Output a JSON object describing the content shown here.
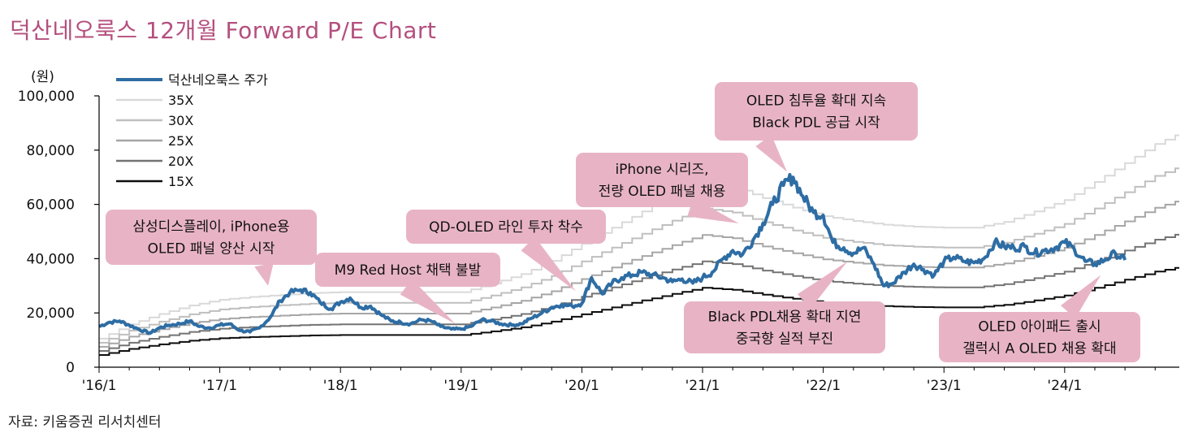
{
  "title": "덕산네오룩스 12개월 Forward P/E Chart",
  "source": "자료: 키움증권 리서치센터",
  "chart_data": {
    "type": "line",
    "title": "덕산네오룩스 12개월 Forward P/E Chart",
    "ylabel": "(원)",
    "xlabel": "",
    "ylim": [
      0,
      100000
    ],
    "yticks": [
      0,
      20000,
      40000,
      60000,
      80000,
      100000
    ],
    "ytick_labels": [
      "0",
      "20,000",
      "40,000",
      "60,000",
      "80,000",
      "100,000"
    ],
    "xlim": [
      2016.0,
      2024.95
    ],
    "xticks": [
      2016,
      2017,
      2018,
      2019,
      2020,
      2021,
      2022,
      2023,
      2024
    ],
    "xtick_labels": [
      "'16/1",
      "'17/1",
      "'18/1",
      "'19/1",
      "'20/1",
      "'21/1",
      "'22/1",
      "'23/1",
      "'24/1"
    ],
    "legend_position": "top-left",
    "band_eps": {
      "x": [
        2016.0,
        2016.25,
        2016.5,
        2016.75,
        2017.0,
        2017.25,
        2017.5,
        2017.75,
        2018.0,
        2018.5,
        2019.0,
        2019.25,
        2019.5,
        2019.75,
        2020.0,
        2020.25,
        2020.5,
        2020.75,
        2021.0,
        2021.25,
        2021.5,
        2021.75,
        2022.0,
        2022.25,
        2022.5,
        2022.75,
        2023.0,
        2023.25,
        2023.5,
        2023.75,
        2024.0,
        2024.25,
        2024.5,
        2024.75,
        2024.95
      ],
      "values": [
        300,
        450,
        560,
        650,
        710,
        740,
        760,
        780,
        790,
        790,
        790,
        880,
        980,
        1120,
        1300,
        1470,
        1640,
        1800,
        1950,
        1900,
        1780,
        1680,
        1590,
        1540,
        1500,
        1480,
        1470,
        1470,
        1530,
        1640,
        1760,
        1950,
        2150,
        2350,
        2460
      ]
    },
    "series": [
      {
        "name": "덕산네오룩스 주가",
        "color": "#2e6da4",
        "width": 4,
        "x": [
          2016.0,
          2016.08,
          2016.17,
          2016.25,
          2016.33,
          2016.42,
          2016.5,
          2016.58,
          2016.67,
          2016.75,
          2016.83,
          2016.92,
          2017.0,
          2017.08,
          2017.17,
          2017.25,
          2017.33,
          2017.42,
          2017.5,
          2017.58,
          2017.67,
          2017.75,
          2017.83,
          2017.92,
          2018.0,
          2018.08,
          2018.17,
          2018.25,
          2018.33,
          2018.42,
          2018.5,
          2018.58,
          2018.67,
          2018.75,
          2018.83,
          2018.92,
          2019.0,
          2019.08,
          2019.17,
          2019.25,
          2019.33,
          2019.42,
          2019.5,
          2019.58,
          2019.67,
          2019.75,
          2019.83,
          2019.92,
          2020.0,
          2020.08,
          2020.17,
          2020.25,
          2020.33,
          2020.42,
          2020.5,
          2020.58,
          2020.67,
          2020.75,
          2020.83,
          2020.92,
          2021.0,
          2021.08,
          2021.17,
          2021.25,
          2021.33,
          2021.42,
          2021.5,
          2021.58,
          2021.67,
          2021.75,
          2021.83,
          2021.92,
          2022.0,
          2022.08,
          2022.17,
          2022.25,
          2022.33,
          2022.42,
          2022.5,
          2022.58,
          2022.67,
          2022.75,
          2022.83,
          2022.92,
          2023.0,
          2023.08,
          2023.17,
          2023.25,
          2023.33,
          2023.42,
          2023.5,
          2023.58,
          2023.67,
          2023.75,
          2023.83,
          2023.92,
          2024.0,
          2024.08,
          2024.17,
          2024.25,
          2024.33,
          2024.42,
          2024.5
        ],
        "values": [
          15000,
          16500,
          17000,
          15500,
          14000,
          12500,
          14500,
          15500,
          16000,
          17000,
          15000,
          14500,
          15500,
          16000,
          13500,
          13000,
          14500,
          18500,
          24500,
          27500,
          28500,
          27500,
          24000,
          21500,
          24000,
          25500,
          22000,
          22500,
          19500,
          17000,
          16500,
          16000,
          17500,
          17000,
          15000,
          14000,
          14000,
          15000,
          17500,
          17000,
          16000,
          15500,
          16000,
          18000,
          20000,
          22000,
          23000,
          22500,
          23500,
          33000,
          27000,
          31000,
          33000,
          34000,
          35000,
          34000,
          33000,
          31500,
          32500,
          31000,
          33000,
          35000,
          40000,
          43000,
          41500,
          47000,
          53000,
          60000,
          67000,
          70000,
          63000,
          57000,
          56000,
          46000,
          44000,
          42000,
          44000,
          38000,
          30000,
          31000,
          35000,
          38000,
          36000,
          34000,
          39000,
          40500,
          39000,
          38500,
          40000,
          46000,
          44500,
          44000,
          44500,
          42000,
          43000,
          44000,
          46000,
          43500,
          39000,
          38000,
          39500,
          42000,
          39500
        ]
      },
      {
        "name": "35X",
        "multiple": 35,
        "color": "#d9d9d9",
        "width": 2
      },
      {
        "name": "30X",
        "multiple": 30,
        "color": "#bfbfbf",
        "width": 2
      },
      {
        "name": "25X",
        "multiple": 25,
        "color": "#a6a6a6",
        "width": 2
      },
      {
        "name": "20X",
        "multiple": 20,
        "color": "#737373",
        "width": 2
      },
      {
        "name": "15X",
        "multiple": 15,
        "color": "#0d0d0d",
        "width": 2
      }
    ],
    "annotations": [
      {
        "lines": [
          "삼성디스플레이, iPhone용",
          "OLED 패널 양산 시작"
        ],
        "target": [
          2017.4,
          30000
        ]
      },
      {
        "lines": [
          "M9 Red Host 채택 불발"
        ],
        "target": [
          2018.95,
          16000
        ]
      },
      {
        "lines": [
          "QD-OLED 라인 투자 착수"
        ],
        "target": [
          2019.95,
          28000
        ]
      },
      {
        "lines": [
          "iPhone 시리즈,",
          "전량 OLED 패널 채용"
        ],
        "target": [
          2021.3,
          53000
        ]
      },
      {
        "lines": [
          "OLED 침투율 확대 지속",
          "Black PDL 공급 시작"
        ],
        "target": [
          2021.7,
          72000
        ]
      },
      {
        "lines": [
          "Black PDL채용 확대 지연",
          "중국향 실적 부진"
        ],
        "target": [
          2022.2,
          39000
        ]
      },
      {
        "lines": [
          "OLED 아이패드 출시",
          "갤럭시 A OLED 채용 확대"
        ],
        "target": [
          2024.3,
          34000
        ]
      }
    ]
  }
}
